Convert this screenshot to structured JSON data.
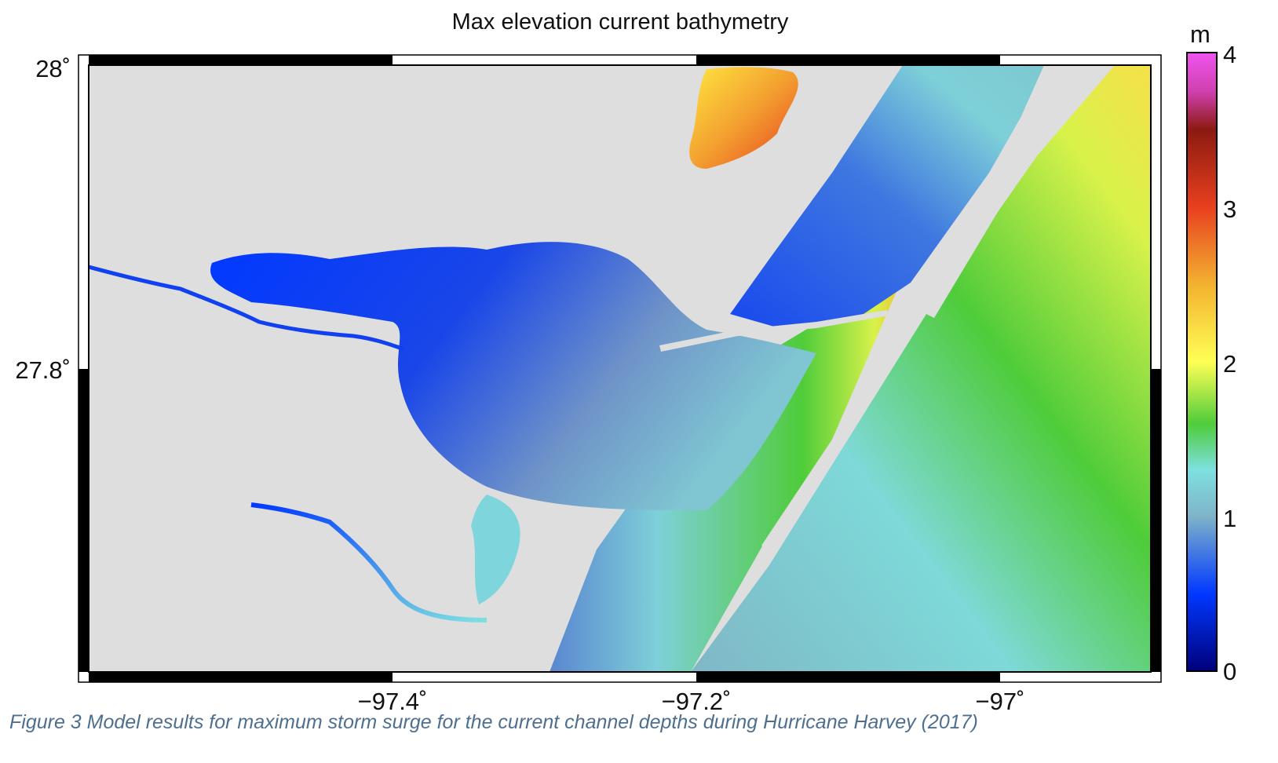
{
  "title": "Max elevation current bathymetry",
  "caption": "Figure 3 Model results for maximum storm surge for the current channel depths during Hurricane Harvey (2017)",
  "map": {
    "latitude_labels": [
      "28˚",
      "27.8˚"
    ],
    "longitude_labels": [
      "−97.4˚",
      "−97.2˚",
      "−97˚"
    ]
  },
  "colorbar": {
    "unit": "m",
    "range": [
      0,
      4
    ],
    "ticks": [
      "0",
      "1",
      "2",
      "3",
      "4"
    ],
    "stops": [
      {
        "value": 0.0,
        "color": "#00007a"
      },
      {
        "value": 0.5,
        "color": "#0038ff"
      },
      {
        "value": 1.0,
        "color": "#7fb3c8"
      },
      {
        "value": 1.3,
        "color": "#7ee0e0"
      },
      {
        "value": 1.6,
        "color": "#4fcc3a"
      },
      {
        "value": 2.0,
        "color": "#ffff55"
      },
      {
        "value": 2.5,
        "color": "#f3b230"
      },
      {
        "value": 3.0,
        "color": "#e8401f"
      },
      {
        "value": 3.5,
        "color": "#8c1a10"
      },
      {
        "value": 3.75,
        "color": "#d040b0"
      },
      {
        "value": 4.0,
        "color": "#ee55ee"
      }
    ]
  },
  "colors": {
    "land": "#dedede",
    "frame": "#000000"
  }
}
